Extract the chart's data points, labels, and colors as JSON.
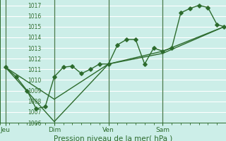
{
  "xlabel": "Pression niveau de la mer( hPa )",
  "bg_color": "#cceee8",
  "grid_color": "#ffffff",
  "line_color": "#2d6b2d",
  "vline_color": "#4a7a4a",
  "ylim": [
    1006,
    1017.5
  ],
  "xlim": [
    0,
    12.5
  ],
  "yticks": [
    1006,
    1007,
    1008,
    1009,
    1010,
    1011,
    1012,
    1013,
    1014,
    1015,
    1016,
    1017
  ],
  "day_labels": [
    "Jeu",
    "Dim",
    "Ven",
    "Sam"
  ],
  "day_positions": [
    0.3,
    3.0,
    6.0,
    9.0
  ],
  "vline_positions": [
    0.3,
    3.0,
    6.0,
    9.0
  ],
  "series1_x": [
    0.3,
    0.9,
    1.5,
    2.0,
    2.5,
    3.0,
    3.5,
    4.0,
    4.5,
    5.0,
    5.5,
    6.0,
    6.5,
    7.0,
    7.5,
    8.0,
    8.5,
    9.0,
    9.5,
    10.0,
    10.5,
    11.0,
    11.5,
    12.0,
    12.4
  ],
  "series1_y": [
    1011.2,
    1010.3,
    1009.0,
    1007.3,
    1007.5,
    1010.3,
    1011.2,
    1011.3,
    1010.6,
    1011.0,
    1011.5,
    1011.5,
    1013.3,
    1013.8,
    1013.8,
    1011.5,
    1013.0,
    1012.7,
    1013.0,
    1016.3,
    1016.7,
    1017.0,
    1016.8,
    1015.2,
    1015.0
  ],
  "series2_x": [
    0.3,
    3.0,
    6.0,
    9.0,
    12.4
  ],
  "series2_y": [
    1011.2,
    1008.2,
    1011.5,
    1012.7,
    1015.0
  ],
  "series3_x": [
    0.3,
    3.0,
    6.0,
    9.0,
    12.4
  ],
  "series3_y": [
    1011.2,
    1006.1,
    1011.5,
    1012.5,
    1015.0
  ],
  "marker_size": 2.8,
  "linewidth": 1.0,
  "tick_color": "#2d6b2d",
  "label_color": "#2d6b2d",
  "xlabel_fontsize": 7.5,
  "ytick_fontsize": 5.5,
  "xtick_fontsize": 6.5
}
